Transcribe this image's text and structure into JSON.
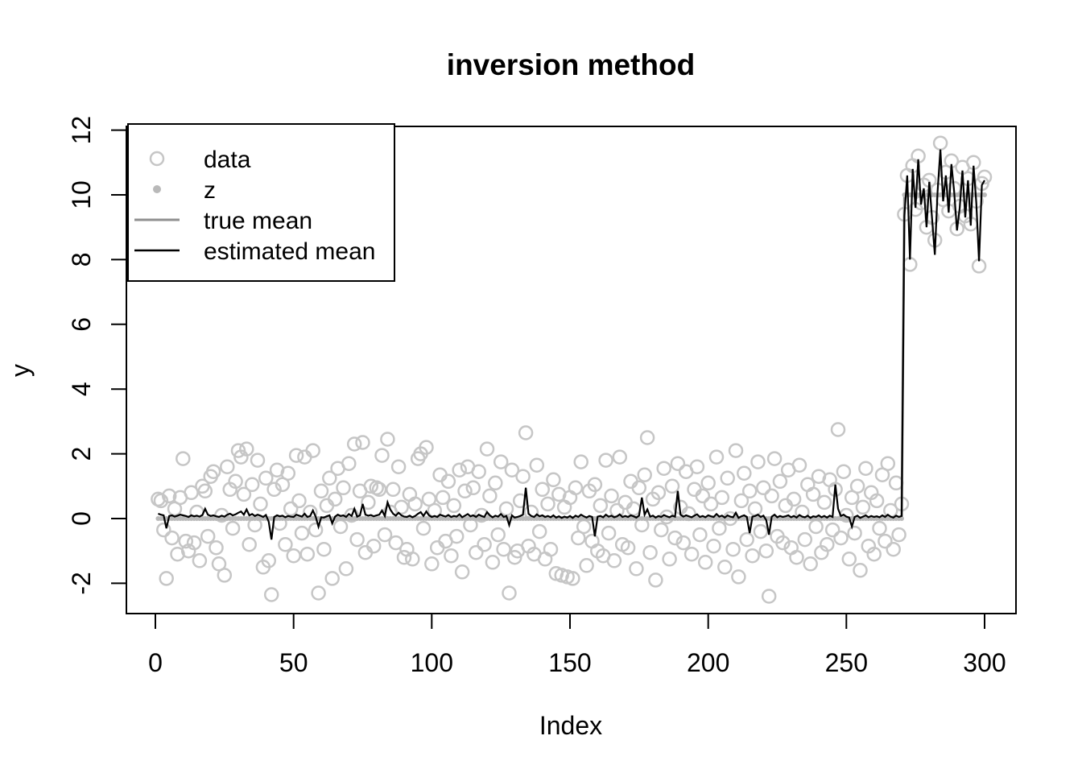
{
  "title": "inversion method",
  "xlabel": "Index",
  "ylabel": "y",
  "colors": {
    "data_point": "#c6c6c6",
    "z_point": "#b9b9b9",
    "true_mean": "#8f8f8f",
    "estimated_mean": "#000000",
    "axis": "#000000",
    "background": "#ffffff"
  },
  "legend": {
    "items": [
      {
        "label": "data",
        "glyph": "open-circle",
        "color": "#c6c6c6"
      },
      {
        "label": "z",
        "glyph": "filled-dot",
        "color": "#b9b9b9"
      },
      {
        "label": "true mean",
        "glyph": "line",
        "color": "#8f8f8f"
      },
      {
        "label": "estimated mean",
        "glyph": "line",
        "color": "#000000"
      }
    ]
  },
  "chart_data": {
    "type": "scatter",
    "title": "inversion method",
    "xlabel": "Index",
    "ylabel": "y",
    "x_start": 1,
    "x_step": 1,
    "n_points": 300,
    "xlim": [
      0,
      300
    ],
    "ylim": [
      -2,
      12
    ],
    "x_ticks": [
      0,
      50,
      100,
      150,
      200,
      250,
      300
    ],
    "y_ticks": [
      -2,
      0,
      2,
      4,
      6,
      8,
      10,
      12
    ],
    "grid": false,
    "legend_position": "top-left",
    "changepoint_index": 270,
    "series": [
      {
        "name": "data",
        "kind": "points",
        "values": [
          0.6,
          0.55,
          -0.35,
          -1.85,
          0.7,
          -0.6,
          0.3,
          -1.1,
          0.65,
          1.85,
          -0.7,
          -1.0,
          0.8,
          -0.75,
          0.2,
          -1.3,
          1.0,
          0.85,
          -0.55,
          1.3,
          1.45,
          -0.9,
          -1.4,
          0.1,
          -1.75,
          1.6,
          0.9,
          -0.3,
          1.15,
          2.1,
          1.9,
          0.75,
          2.15,
          -0.8,
          1.05,
          -0.2,
          1.8,
          0.45,
          -1.5,
          1.25,
          -1.3,
          -2.35,
          0.9,
          1.5,
          -0.15,
          1.05,
          -0.8,
          1.4,
          0.3,
          -1.15,
          1.95,
          0.55,
          -0.45,
          1.9,
          -1.1,
          0.2,
          2.1,
          -0.35,
          -2.3,
          0.85,
          -0.95,
          0.4,
          1.25,
          -1.85,
          0.6,
          1.55,
          -0.25,
          0.95,
          -1.55,
          1.7,
          0.1,
          2.3,
          -0.65,
          0.85,
          2.35,
          -1.05,
          0.5,
          1.0,
          -0.85,
          0.95,
          0.9,
          1.95,
          -0.5,
          2.45,
          0.2,
          0.9,
          -0.75,
          1.6,
          0.35,
          -1.2,
          -0.95,
          0.75,
          -1.25,
          0.45,
          1.85,
          2.0,
          -0.3,
          2.2,
          0.6,
          -1.4,
          0.25,
          -0.9,
          1.35,
          0.65,
          -0.7,
          1.15,
          -1.15,
          0.4,
          -0.55,
          1.5,
          -1.65,
          0.85,
          1.6,
          -0.2,
          0.95,
          -1.05,
          1.45,
          0.1,
          -0.8,
          2.15,
          0.7,
          -1.35,
          1.1,
          -0.5,
          1.75,
          -0.95,
          0.3,
          -2.3,
          1.5,
          -1.2,
          -1.0,
          0.55,
          1.3,
          2.65,
          -0.85,
          0.2,
          -1.1,
          1.65,
          -0.4,
          0.9,
          -1.25,
          0.45,
          -0.95,
          1.2,
          -1.7,
          0.75,
          -1.75,
          0.35,
          -1.8,
          0.65,
          -1.85,
          0.95,
          -0.6,
          1.75,
          -0.25,
          -1.45,
          0.85,
          -0.7,
          1.05,
          -1.0,
          0.4,
          -1.15,
          1.8,
          -0.45,
          0.7,
          -1.3,
          0.25,
          1.9,
          -0.8,
          0.5,
          -0.9,
          1.15,
          0.3,
          -1.55,
          0.95,
          -0.2,
          1.35,
          2.5,
          -1.05,
          0.6,
          -1.9,
          0.8,
          -0.35,
          1.55,
          0.05,
          -1.25,
          1.0,
          -0.6,
          1.7,
          0.35,
          -0.75,
          1.45,
          0.15,
          -1.1,
          0.9,
          1.6,
          -0.5,
          0.7,
          -1.35,
          1.1,
          0.45,
          -0.85,
          1.9,
          -0.3,
          0.65,
          -1.5,
          1.25,
          0.0,
          -0.95,
          2.1,
          -1.8,
          0.55,
          1.4,
          -0.65,
          0.85,
          -1.15,
          0.3,
          1.75,
          -0.4,
          0.95,
          -1.0,
          -2.4,
          0.7,
          1.85,
          -0.55,
          1.15,
          -0.75,
          0.4,
          1.5,
          -0.9,
          0.6,
          -1.2,
          1.65,
          0.2,
          -0.65,
          1.05,
          -1.4,
          0.75,
          -0.25,
          1.3,
          -1.05,
          0.5,
          -0.8,
          1.2,
          -0.35,
          0.9,
          2.75,
          -0.6,
          1.45,
          0.1,
          -1.25,
          0.65,
          -0.45,
          1.0,
          -1.6,
          0.35,
          1.55,
          -0.85,
          0.8,
          -1.1,
          0.55,
          -0.3,
          1.35,
          -0.7,
          1.7,
          0.25,
          -0.95,
          1.1,
          -0.5,
          0.45,
          9.4,
          10.6,
          7.85,
          10.9,
          9.55,
          11.2,
          9.75,
          10.3,
          9.0,
          10.45,
          9.3,
          8.6,
          10.15,
          11.6,
          9.85,
          10.7,
          9.5,
          11.05,
          10.2,
          8.95,
          9.65,
          10.85,
          9.35,
          10.5,
          9.1,
          11.0,
          9.8,
          7.8,
          10.35,
          10.55
        ]
      },
      {
        "name": "z",
        "kind": "points-small",
        "segments": [
          {
            "from": 1,
            "to": 270,
            "value": 0
          },
          {
            "from": 271,
            "to": 300,
            "value": 10
          }
        ]
      },
      {
        "name": "true mean",
        "kind": "line",
        "segments": [
          {
            "from": 1,
            "to": 270,
            "value": 0
          },
          {
            "from": 271,
            "to": 300,
            "value": 10
          }
        ]
      },
      {
        "name": "estimated mean",
        "kind": "line",
        "values": [
          0.15,
          0.12,
          0.1,
          -0.3,
          0.08,
          0.1,
          0.06,
          0.09,
          0.12,
          0.1,
          0.08,
          0.05,
          0.1,
          0.07,
          0.09,
          0.06,
          0.11,
          0.3,
          0.12,
          0.08,
          0.1,
          0.07,
          0.05,
          0.09,
          0.06,
          0.12,
          0.15,
          0.1,
          0.13,
          0.18,
          0.22,
          0.12,
          0.28,
          0.1,
          0.14,
          0.08,
          0.12,
          0.09,
          0.05,
          0.11,
          -0.1,
          -0.65,
          0.05,
          0.1,
          0.07,
          0.09,
          0.04,
          0.08,
          0.06,
          0.05,
          0.12,
          0.09,
          0.06,
          0.15,
          0.05,
          0.08,
          0.25,
          0.06,
          -0.25,
          0.04,
          0.03,
          0.07,
          0.1,
          -0.15,
          0.06,
          0.12,
          0.08,
          0.1,
          0.05,
          0.14,
          0.08,
          0.3,
          0.06,
          0.1,
          0.45,
          0.12,
          0.09,
          0.11,
          0.07,
          0.1,
          0.12,
          0.25,
          0.08,
          0.5,
          0.28,
          0.15,
          0.09,
          0.18,
          0.1,
          0.06,
          0.05,
          0.09,
          0.04,
          0.08,
          0.15,
          0.2,
          0.08,
          0.22,
          0.1,
          0.05,
          0.08,
          0.05,
          0.12,
          0.09,
          0.06,
          0.11,
          0.05,
          0.08,
          0.06,
          0.13,
          0.04,
          0.09,
          0.14,
          0.07,
          0.1,
          0.05,
          0.12,
          0.08,
          0.05,
          0.2,
          0.1,
          0.04,
          0.09,
          0.06,
          0.14,
          0.05,
          0.08,
          -0.2,
          0.1,
          0.03,
          0.05,
          0.08,
          0.12,
          0.95,
          0.15,
          0.08,
          0.05,
          0.13,
          0.07,
          0.1,
          0.05,
          0.08,
          0.04,
          0.1,
          0.03,
          0.07,
          0.02,
          0.06,
          0.03,
          0.08,
          0.02,
          0.09,
          0.05,
          0.12,
          0.07,
          0.03,
          0.08,
          0.05,
          -0.55,
          0.06,
          0.08,
          0.04,
          0.12,
          0.06,
          0.09,
          0.04,
          0.07,
          0.13,
          0.05,
          0.08,
          0.05,
          0.1,
          0.07,
          0.03,
          0.09,
          0.65,
          0.12,
          0.28,
          0.06,
          0.09,
          0.03,
          0.08,
          0.05,
          0.11,
          0.07,
          0.04,
          0.09,
          0.06,
          0.85,
          0.12,
          0.06,
          0.1,
          0.07,
          0.04,
          0.09,
          0.13,
          0.05,
          0.08,
          0.04,
          0.1,
          0.07,
          0.05,
          0.14,
          0.06,
          0.09,
          0.03,
          0.1,
          0.06,
          0.04,
          0.18,
          0.02,
          0.07,
          0.1,
          0.05,
          -0.45,
          0.06,
          0.08,
          0.12,
          0.05,
          0.09,
          -0.05,
          -0.5,
          0.06,
          0.12,
          0.04,
          0.08,
          0.05,
          0.07,
          0.1,
          0.04,
          0.08,
          0.03,
          0.11,
          0.06,
          0.04,
          0.09,
          0.02,
          0.07,
          0.05,
          0.1,
          0.04,
          0.08,
          0.03,
          0.09,
          0.05,
          1.05,
          0.3,
          0.08,
          0.12,
          0.06,
          0.03,
          -0.25,
          0.05,
          0.09,
          0.02,
          0.06,
          0.1,
          0.04,
          0.08,
          0.05,
          0.07,
          0.04,
          0.1,
          0.05,
          0.12,
          0.06,
          0.03,
          0.09,
          0.05,
          0.08,
          9.35,
          10.6,
          8.0,
          10.8,
          9.6,
          11.1,
          9.7,
          10.2,
          9.0,
          10.4,
          9.25,
          8.15,
          10.1,
          11.4,
          9.8,
          10.6,
          9.45,
          10.95,
          10.1,
          8.9,
          9.6,
          10.75,
          9.3,
          10.45,
          9.05,
          10.9,
          9.75,
          7.95,
          10.3,
          10.45
        ]
      }
    ]
  }
}
